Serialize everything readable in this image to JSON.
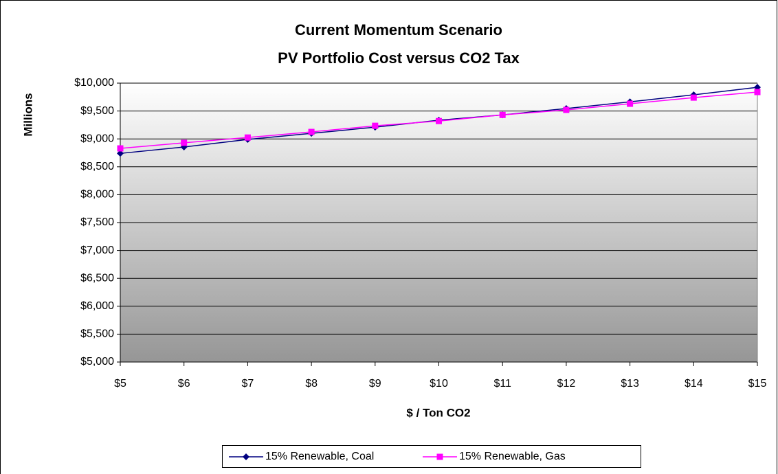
{
  "chart_data": {
    "type": "line",
    "title": "Current Momentum Scenario",
    "subtitle": "PV Portfolio Cost versus CO2 Tax",
    "x_label": "$ / Ton CO2",
    "y_label": "Millions",
    "x": [
      5,
      6,
      7,
      8,
      9,
      10,
      11,
      12,
      13,
      14,
      15
    ],
    "xlim": [
      5,
      15
    ],
    "xticks": [
      {
        "value": 5,
        "label": "$5"
      },
      {
        "value": 6,
        "label": "$6"
      },
      {
        "value": 7,
        "label": "$7"
      },
      {
        "value": 8,
        "label": "$8"
      },
      {
        "value": 9,
        "label": "$9"
      },
      {
        "value": 10,
        "label": "$10"
      },
      {
        "value": 11,
        "label": "$11"
      },
      {
        "value": 12,
        "label": "$12"
      },
      {
        "value": 13,
        "label": "$13"
      },
      {
        "value": 14,
        "label": "$14"
      },
      {
        "value": 15,
        "label": "$15"
      }
    ],
    "ylim": [
      5000,
      10000
    ],
    "yticks": [
      {
        "value": 5000,
        "label": "$5,000"
      },
      {
        "value": 5500,
        "label": "$5,500"
      },
      {
        "value": 6000,
        "label": "$6,000"
      },
      {
        "value": 6500,
        "label": "$6,500"
      },
      {
        "value": 7000,
        "label": "$7,000"
      },
      {
        "value": 7500,
        "label": "$7,500"
      },
      {
        "value": 8000,
        "label": "$8,000"
      },
      {
        "value": 8500,
        "label": "$8,500"
      },
      {
        "value": 9000,
        "label": "$9,000"
      },
      {
        "value": 9500,
        "label": "$9,500"
      },
      {
        "value": 10000,
        "label": "$10,000"
      }
    ],
    "grid": true,
    "legend": "bottom",
    "series": [
      {
        "name": "15% Renewable, Coal",
        "color": "#000080",
        "marker": "diamond",
        "values": [
          8740,
          8855,
          8990,
          9100,
          9210,
          9335,
          9430,
          9545,
          9665,
          9790,
          9925
        ]
      },
      {
        "name": "15% Renewable, Gas",
        "color": "#ff00ff",
        "marker": "square",
        "values": [
          8830,
          8930,
          9025,
          9125,
          9235,
          9320,
          9430,
          9520,
          9630,
          9740,
          9840
        ]
      }
    ]
  }
}
